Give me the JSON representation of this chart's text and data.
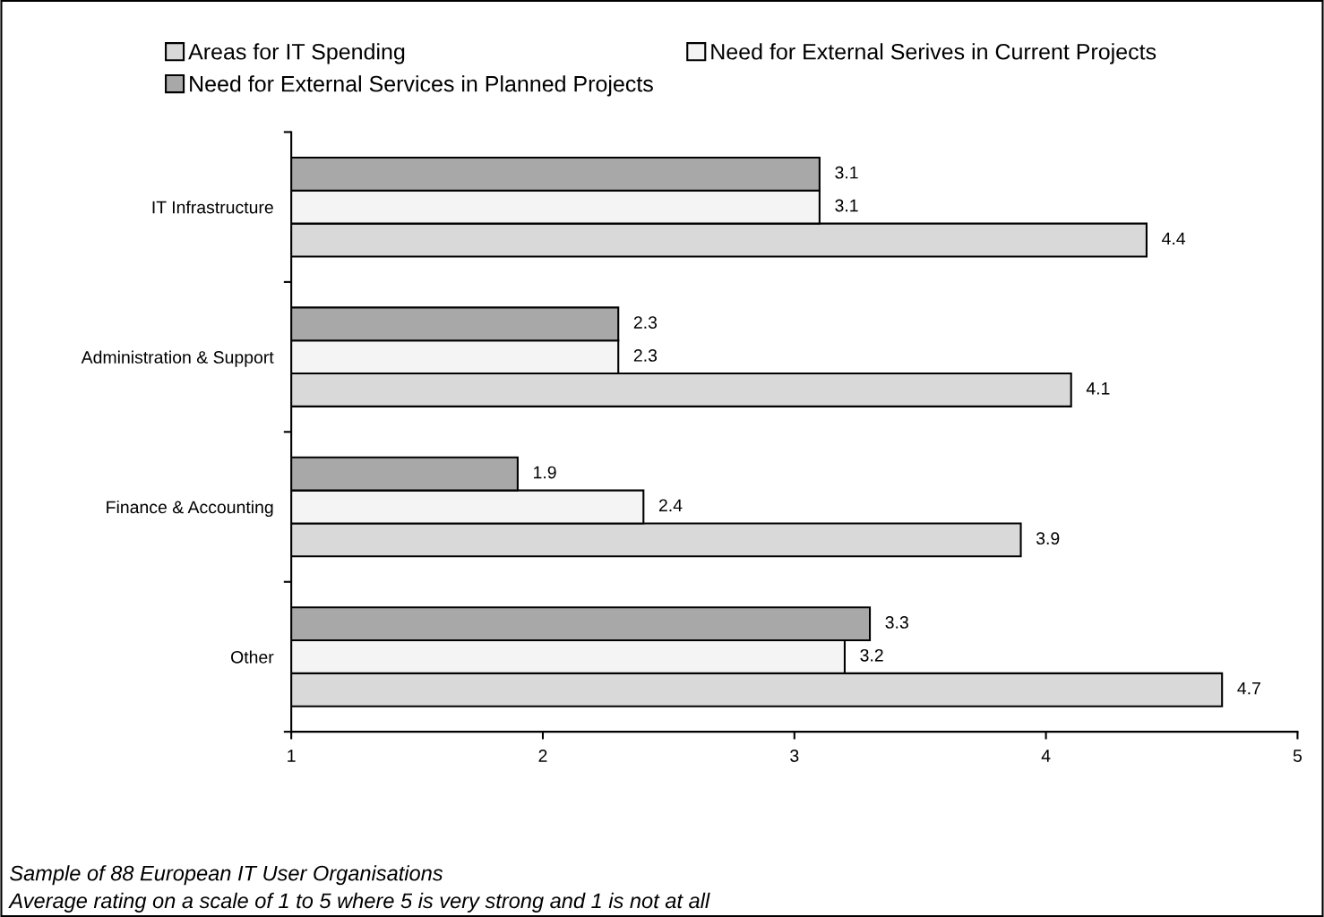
{
  "chart_data": {
    "type": "bar",
    "orientation": "horizontal",
    "categories": [
      "IT Infrastructure",
      "Administration & Support",
      "Finance & Accounting",
      "Other"
    ],
    "series": [
      {
        "name": "Areas for IT Spending",
        "color": "#d9d9d9",
        "values": [
          4.4,
          4.1,
          3.9,
          4.7
        ]
      },
      {
        "name": "Need for External Serives in Current Projects",
        "color": "#f4f4f4",
        "values": [
          3.1,
          2.3,
          2.4,
          3.2
        ]
      },
      {
        "name": "Need for External Services in Planned Projects",
        "color": "#a8a8a8",
        "values": [
          3.1,
          2.3,
          1.9,
          3.3
        ]
      }
    ],
    "xlim": [
      1,
      5
    ],
    "xticks": [
      1,
      2,
      3,
      4,
      5
    ],
    "data_labels": true,
    "legend": "top",
    "grid": false,
    "annotations": [
      "Sample of 88 European IT User Organisations",
      "Average rating on a scale of 1 to 5 where 5 is very strong and 1 is not at all"
    ]
  }
}
